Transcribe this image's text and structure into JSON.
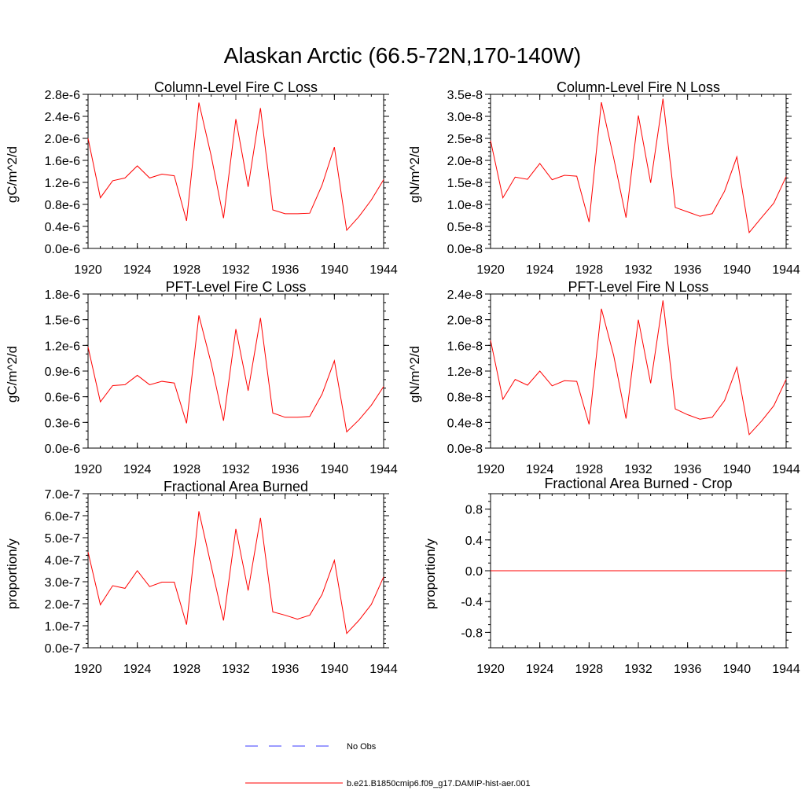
{
  "title": "Alaskan Arctic (66.5-72N,170-140W)",
  "colors": {
    "model_line": "#ff0000",
    "obs_line": "#3a3aff",
    "axis": "#000000"
  },
  "legend": [
    {
      "label": "No Obs",
      "style": "dashed",
      "color": "#3a3aff"
    },
    {
      "label": "b.e21.B1850cmip6.f09_g17.DAMIP-hist-aer.001",
      "style": "solid",
      "color": "#ff0000"
    }
  ],
  "chart_data": [
    {
      "type": "line",
      "title": "Column-Level Fire C Loss",
      "ylabel": "gC/m^2/d",
      "xlim": [
        1920,
        1944
      ],
      "ylim": [
        0,
        2.8e-06
      ],
      "x_ticks": [
        "1920",
        "1924",
        "1928",
        "1932",
        "1936",
        "1940",
        "1944"
      ],
      "y_ticks": [
        0,
        4e-07,
        8e-07,
        1.2e-06,
        1.6e-06,
        2e-06,
        2.4e-06,
        2.8e-06
      ],
      "y_tick_labels": [
        "0.0e-6",
        "0.4e-6",
        "0.8e-6",
        "1.2e-6",
        "1.6e-6",
        "2.0e-6",
        "2.4e-6",
        "2.8e-6"
      ],
      "y_minor_step": 1e-07,
      "x": [
        1920,
        1921,
        1922,
        1923,
        1924,
        1925,
        1926,
        1927,
        1928,
        1929,
        1930,
        1931,
        1932,
        1933,
        1934,
        1935,
        1936,
        1937,
        1938,
        1939,
        1940,
        1941,
        1942,
        1943,
        1944
      ],
      "series": [
        {
          "values": [
            2e-06,
            9.2e-07,
            1.23e-06,
            1.28e-06,
            1.5e-06,
            1.28e-06,
            1.35e-06,
            1.32e-06,
            5e-07,
            2.65e-06,
            1.68e-06,
            5.5e-07,
            2.35e-06,
            1.12e-06,
            2.55e-06,
            7e-07,
            6.3e-07,
            6.3e-07,
            6.4e-07,
            1.15e-06,
            1.84e-06,
            3.3e-07,
            5.8e-07,
            8.8e-07,
            1.25e-06
          ]
        }
      ]
    },
    {
      "type": "line",
      "title": "Column-Level Fire N Loss",
      "ylabel": "gN/m^2/d",
      "xlim": [
        1920,
        1944
      ],
      "ylim": [
        0,
        3.5e-08
      ],
      "x_ticks": [
        "1920",
        "1924",
        "1928",
        "1932",
        "1936",
        "1940",
        "1944"
      ],
      "y_ticks": [
        0,
        5e-09,
        1e-08,
        1.5e-08,
        2e-08,
        2.5e-08,
        3e-08,
        3.5e-08
      ],
      "y_tick_labels": [
        "0.0e-8",
        "0.5e-8",
        "1.0e-8",
        "1.5e-8",
        "2.0e-8",
        "2.5e-8",
        "3.0e-8",
        "3.5e-8"
      ],
      "y_minor_step": 1e-09,
      "x": [
        1920,
        1921,
        1922,
        1923,
        1924,
        1925,
        1926,
        1927,
        1928,
        1929,
        1930,
        1931,
        1932,
        1933,
        1934,
        1935,
        1936,
        1937,
        1938,
        1939,
        1940,
        1941,
        1942,
        1943,
        1944
      ],
      "series": [
        {
          "values": [
            2.45e-08,
            1.15e-08,
            1.62e-08,
            1.57e-08,
            1.93e-08,
            1.56e-08,
            1.66e-08,
            1.64e-08,
            6e-09,
            3.32e-08,
            2.05e-08,
            7e-09,
            3.02e-08,
            1.49e-08,
            3.4e-08,
            9.3e-09,
            8.3e-09,
            7.3e-09,
            7.9e-09,
            1.3e-08,
            2.08e-08,
            3.6e-09,
            7e-09,
            1.03e-08,
            1.63e-08
          ]
        }
      ]
    },
    {
      "type": "line",
      "title": "PFT-Level Fire C Loss",
      "ylabel": "gC/m^2/d",
      "xlim": [
        1920,
        1944
      ],
      "ylim": [
        0,
        1.8e-06
      ],
      "x_ticks": [
        "1920",
        "1924",
        "1928",
        "1932",
        "1936",
        "1940",
        "1944"
      ],
      "y_ticks": [
        0,
        3e-07,
        6e-07,
        9e-07,
        1.2e-06,
        1.5e-06,
        1.8e-06
      ],
      "y_tick_labels": [
        "0.0e-6",
        "0.3e-6",
        "0.6e-6",
        "0.9e-6",
        "1.2e-6",
        "1.5e-6",
        "1.8e-6"
      ],
      "y_minor_step": 1e-07,
      "x": [
        1920,
        1921,
        1922,
        1923,
        1924,
        1925,
        1926,
        1927,
        1928,
        1929,
        1930,
        1931,
        1932,
        1933,
        1934,
        1935,
        1936,
        1937,
        1938,
        1939,
        1940,
        1941,
        1942,
        1943,
        1944
      ],
      "series": [
        {
          "values": [
            1.18e-06,
            5.4e-07,
            7.3e-07,
            7.4e-07,
            8.5e-07,
            7.4e-07,
            7.8e-07,
            7.6e-07,
            2.9e-07,
            1.55e-06,
            9.9e-07,
            3.2e-07,
            1.39e-06,
            6.7e-07,
            1.52e-06,
            4.1e-07,
            3.6e-07,
            3.6e-07,
            3.7e-07,
            6.3e-07,
            1.02e-06,
            1.9e-07,
            3.3e-07,
            5e-07,
            7.2e-07
          ]
        }
      ]
    },
    {
      "type": "line",
      "title": "PFT-Level Fire N Loss",
      "ylabel": "gN/m^2/d",
      "xlim": [
        1920,
        1944
      ],
      "ylim": [
        0,
        2.4e-08
      ],
      "x_ticks": [
        "1920",
        "1924",
        "1928",
        "1932",
        "1936",
        "1940",
        "1944"
      ],
      "y_ticks": [
        0,
        4e-09,
        8e-09,
        1.2e-08,
        1.6e-08,
        2e-08,
        2.4e-08
      ],
      "y_tick_labels": [
        "0.0e-8",
        "0.4e-8",
        "0.8e-8",
        "1.2e-8",
        "1.6e-8",
        "2.0e-8",
        "2.4e-8"
      ],
      "y_minor_step": 1e-09,
      "x": [
        1920,
        1921,
        1922,
        1923,
        1924,
        1925,
        1926,
        1927,
        1928,
        1929,
        1930,
        1931,
        1932,
        1933,
        1934,
        1935,
        1936,
        1937,
        1938,
        1939,
        1940,
        1941,
        1942,
        1943,
        1944
      ],
      "series": [
        {
          "values": [
            1.68e-08,
            7.6e-09,
            1.07e-08,
            9.8e-09,
            1.2e-08,
            9.7e-09,
            1.05e-08,
            1.04e-08,
            3.7e-09,
            2.17e-08,
            1.44e-08,
            4.6e-09,
            2e-08,
            1.01e-08,
            2.3e-08,
            6.1e-09,
            5.2e-09,
            4.5e-09,
            4.8e-09,
            7.4e-09,
            1.26e-08,
            2.1e-09,
            4.2e-09,
            6.6e-09,
            1.07e-08
          ]
        }
      ]
    },
    {
      "type": "line",
      "title": "Fractional Area Burned",
      "ylabel": "proportion/y",
      "xlim": [
        1920,
        1944
      ],
      "ylim": [
        0,
        7e-07
      ],
      "x_ticks": [
        "1920",
        "1924",
        "1928",
        "1932",
        "1936",
        "1940",
        "1944"
      ],
      "y_ticks": [
        0,
        1e-07,
        2e-07,
        3e-07,
        4e-07,
        5e-07,
        6e-07,
        7e-07
      ],
      "y_tick_labels": [
        "0.0e-7",
        "1.0e-7",
        "2.0e-7",
        "3.0e-7",
        "4.0e-7",
        "5.0e-7",
        "6.0e-7",
        "7.0e-7"
      ],
      "y_minor_step": 2e-08,
      "x": [
        1920,
        1921,
        1922,
        1923,
        1924,
        1925,
        1926,
        1927,
        1928,
        1929,
        1930,
        1931,
        1932,
        1933,
        1934,
        1935,
        1936,
        1937,
        1938,
        1939,
        1940,
        1941,
        1942,
        1943,
        1944
      ],
      "series": [
        {
          "values": [
            4.35e-07,
            1.95e-07,
            2.82e-07,
            2.7e-07,
            3.5e-07,
            2.78e-07,
            2.98e-07,
            2.98e-07,
            1.05e-07,
            6.2e-07,
            3.72e-07,
            1.24e-07,
            5.4e-07,
            2.6e-07,
            5.9e-07,
            1.63e-07,
            1.48e-07,
            1.3e-07,
            1.48e-07,
            2.42e-07,
            3.97e-07,
            6.5e-08,
            1.25e-07,
            1.97e-07,
            3.22e-07
          ]
        }
      ]
    },
    {
      "type": "line",
      "title": "Fractional Area Burned - Crop",
      "ylabel": "proportion/y",
      "xlim": [
        1920,
        1944
      ],
      "ylim": [
        -1.0,
        1.0
      ],
      "x_ticks": [
        "1920",
        "1924",
        "1928",
        "1932",
        "1936",
        "1940",
        "1944"
      ],
      "y_ticks": [
        -0.8,
        -0.4,
        0.0,
        0.4,
        0.8
      ],
      "y_tick_labels": [
        "-0.8",
        "-0.4",
        "0.0",
        "0.4",
        "0.8"
      ],
      "y_minor_step": 0.1,
      "x": [
        1920,
        1921,
        1922,
        1923,
        1924,
        1925,
        1926,
        1927,
        1928,
        1929,
        1930,
        1931,
        1932,
        1933,
        1934,
        1935,
        1936,
        1937,
        1938,
        1939,
        1940,
        1941,
        1942,
        1943,
        1944
      ],
      "series": [
        {
          "values": [
            0,
            0,
            0,
            0,
            0,
            0,
            0,
            0,
            0,
            0,
            0,
            0,
            0,
            0,
            0,
            0,
            0,
            0,
            0,
            0,
            0,
            0,
            0,
            0,
            0
          ]
        }
      ]
    }
  ]
}
